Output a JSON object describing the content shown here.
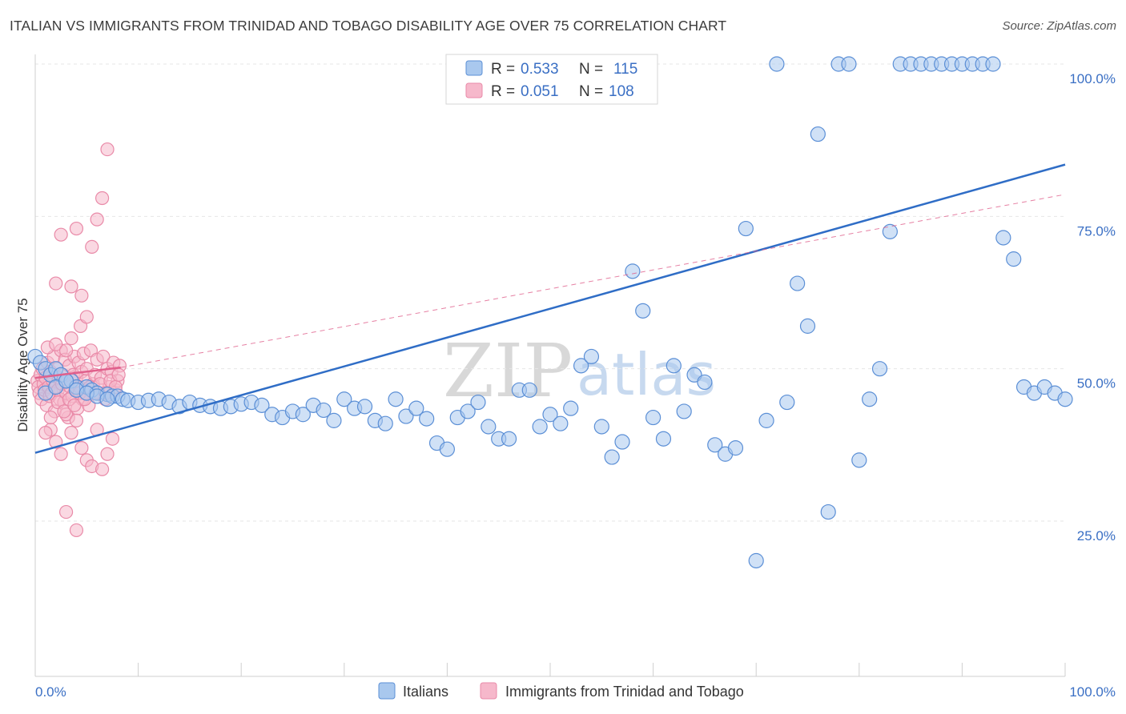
{
  "header": {
    "title": "ITALIAN VS IMMIGRANTS FROM TRINIDAD AND TOBAGO DISABILITY AGE OVER 75 CORRELATION CHART",
    "source": "Source: ZipAtlas.com"
  },
  "watermark": {
    "zip": "ZIP",
    "atlas": "atlas"
  },
  "legend": {
    "rows": [
      {
        "r_label": "R =",
        "r_value": "0.533",
        "n_label": "N =",
        "n_value": "115"
      },
      {
        "r_label": "R =",
        "r_value": "0.051",
        "n_label": "N =",
        "n_value": "108"
      }
    ]
  },
  "colors": {
    "blue_fill": "#a9c8ee",
    "blue_stroke": "#5b8fd6",
    "blue_line": "#2f6dc6",
    "pink_fill": "#f6b8cb",
    "pink_stroke": "#e98aa8",
    "pink_line": "#e0608c",
    "grid": "#e6e6e6",
    "axis_label": "#3a6fc4"
  },
  "chart_data": {
    "type": "scatter",
    "title": "ITALIAN VS IMMIGRANTS FROM TRINIDAD AND TOBAGO DISABILITY AGE OVER 75 CORRELATION CHART",
    "xlabel": "",
    "ylabel": "Disability Age Over 75",
    "xlim": [
      0,
      100
    ],
    "ylim": [
      0,
      102
    ],
    "x_tick_labels": [
      "0.0%",
      "100.0%"
    ],
    "y_tick_labels": [
      "100.0%",
      "75.0%",
      "50.0%",
      "25.0%"
    ],
    "y_ticks": [
      100,
      75,
      50,
      25
    ],
    "grid": true,
    "legend_position": "top-center",
    "series": [
      {
        "name": "Italians",
        "R": 0.533,
        "N": 115,
        "trend": {
          "x": [
            0,
            100
          ],
          "y": [
            36.2,
            83.5
          ],
          "style": "solid"
        },
        "points": [
          [
            0,
            52
          ],
          [
            0.5,
            51
          ],
          [
            1,
            50
          ],
          [
            1.5,
            49
          ],
          [
            2,
            50
          ],
          [
            2.5,
            49
          ],
          [
            3,
            48
          ],
          [
            3.5,
            48
          ],
          [
            4,
            47
          ],
          [
            5,
            47
          ],
          [
            5.5,
            46.5
          ],
          [
            6,
            46
          ],
          [
            7,
            45.8
          ],
          [
            7.5,
            45.5
          ],
          [
            8,
            45.5
          ],
          [
            8.5,
            45
          ],
          [
            9,
            44.8
          ],
          [
            10,
            44.5
          ],
          [
            11,
            44.8
          ],
          [
            12,
            45
          ],
          [
            13,
            44.5
          ],
          [
            14,
            43.8
          ],
          [
            15,
            44.5
          ],
          [
            16,
            44
          ],
          [
            17,
            43.8
          ],
          [
            18,
            43.5
          ],
          [
            19,
            43.8
          ],
          [
            20,
            44.2
          ],
          [
            21,
            44.5
          ],
          [
            22,
            44
          ],
          [
            23,
            42.5
          ],
          [
            24,
            42
          ],
          [
            25,
            43
          ],
          [
            26,
            42.5
          ],
          [
            27,
            44
          ],
          [
            28,
            43.2
          ],
          [
            29,
            41.5
          ],
          [
            30,
            45
          ],
          [
            31,
            43.5
          ],
          [
            32,
            43.8
          ],
          [
            33,
            41.5
          ],
          [
            34,
            41
          ],
          [
            35,
            45
          ],
          [
            36,
            42.2
          ],
          [
            37,
            43.5
          ],
          [
            38,
            41.8
          ],
          [
            39,
            37.8
          ],
          [
            40,
            36.8
          ],
          [
            41,
            42
          ],
          [
            42,
            43
          ],
          [
            43,
            44.5
          ],
          [
            44,
            40.5
          ],
          [
            45,
            38.5
          ],
          [
            46,
            38.5
          ],
          [
            47,
            46.5
          ],
          [
            48,
            46.5
          ],
          [
            49,
            40.5
          ],
          [
            50,
            42.5
          ],
          [
            51,
            41
          ],
          [
            52,
            43.5
          ],
          [
            53,
            50.5
          ],
          [
            54,
            52
          ],
          [
            55,
            40.5
          ],
          [
            56,
            35.5
          ],
          [
            57,
            38
          ],
          [
            58,
            66
          ],
          [
            59,
            59.5
          ],
          [
            60,
            42
          ],
          [
            61,
            38.5
          ],
          [
            62,
            50.5
          ],
          [
            63,
            43
          ],
          [
            64,
            49
          ],
          [
            65,
            47.8
          ],
          [
            66,
            37.5
          ],
          [
            67,
            36
          ],
          [
            68,
            37
          ],
          [
            69,
            73
          ],
          [
            70,
            18.5
          ],
          [
            71,
            41.5
          ],
          [
            72,
            100
          ],
          [
            73,
            44.5
          ],
          [
            74,
            64
          ],
          [
            75,
            57
          ],
          [
            76,
            88.5
          ],
          [
            77,
            26.5
          ],
          [
            78,
            100
          ],
          [
            79,
            100
          ],
          [
            80,
            35
          ],
          [
            81,
            45
          ],
          [
            82,
            50
          ],
          [
            83,
            72.5
          ],
          [
            84,
            100
          ],
          [
            85,
            100
          ],
          [
            86,
            100
          ],
          [
            87,
            100
          ],
          [
            88,
            100
          ],
          [
            89,
            100
          ],
          [
            90,
            100
          ],
          [
            91,
            100
          ],
          [
            92,
            100
          ],
          [
            93,
            100
          ],
          [
            94,
            71.5
          ],
          [
            95,
            68
          ],
          [
            96,
            47
          ],
          [
            97,
            46
          ],
          [
            98,
            47
          ],
          [
            99,
            46
          ],
          [
            100,
            45
          ],
          [
            1,
            46
          ],
          [
            2,
            47
          ],
          [
            3,
            48
          ],
          [
            4,
            46.5
          ],
          [
            5,
            46
          ],
          [
            6,
            45.5
          ],
          [
            7,
            45
          ]
        ]
      },
      {
        "name": "Immigrants from Trinidad and Tobago",
        "R": 0.051,
        "N": 108,
        "trend": {
          "x": [
            0,
            8.3
          ],
          "y": [
            48.5,
            50.2
          ],
          "style": "solid",
          "extended": {
            "x": [
              8.3,
              100
            ],
            "y": [
              50.2,
              78.6
            ],
            "style": "dashed"
          }
        },
        "points": [
          [
            0.2,
            48
          ],
          [
            0.3,
            47
          ],
          [
            0.4,
            46
          ],
          [
            0.5,
            49
          ],
          [
            0.6,
            45
          ],
          [
            0.7,
            50
          ],
          [
            0.8,
            47.5
          ],
          [
            0.9,
            46.5
          ],
          [
            1.0,
            48.5
          ],
          [
            1.1,
            44
          ],
          [
            1.2,
            51
          ],
          [
            1.3,
            47
          ],
          [
            1.4,
            45.5
          ],
          [
            1.5,
            49.5
          ],
          [
            1.6,
            46
          ],
          [
            1.7,
            48
          ],
          [
            1.8,
            52
          ],
          [
            1.9,
            43
          ],
          [
            2.0,
            47
          ],
          [
            2.1,
            50
          ],
          [
            2.2,
            46.5
          ],
          [
            2.3,
            48.5
          ],
          [
            2.4,
            45
          ],
          [
            2.5,
            53
          ],
          [
            2.6,
            47.5
          ],
          [
            2.7,
            49
          ],
          [
            2.8,
            44.5
          ],
          [
            2.9,
            51.5
          ],
          [
            3.0,
            46
          ],
          [
            3.1,
            48
          ],
          [
            3.2,
            42
          ],
          [
            3.3,
            50.5
          ],
          [
            3.4,
            47
          ],
          [
            3.5,
            55
          ],
          [
            3.6,
            45.5
          ],
          [
            3.7,
            49
          ],
          [
            3.8,
            52
          ],
          [
            3.9,
            46.5
          ],
          [
            4.0,
            48.5
          ],
          [
            4.1,
            43.5
          ],
          [
            4.2,
            51
          ],
          [
            4.3,
            47
          ],
          [
            4.4,
            57
          ],
          [
            4.5,
            49.5
          ],
          [
            4.6,
            45
          ],
          [
            4.7,
            52.5
          ],
          [
            4.8,
            46
          ],
          [
            4.9,
            48
          ],
          [
            5.0,
            50
          ],
          [
            5.2,
            44
          ],
          [
            5.4,
            53
          ],
          [
            5.6,
            47.5
          ],
          [
            5.8,
            49
          ],
          [
            6.0,
            51.5
          ],
          [
            6.2,
            46
          ],
          [
            6.4,
            48.5
          ],
          [
            6.6,
            52
          ],
          [
            6.8,
            45
          ],
          [
            7.0,
            50
          ],
          [
            7.2,
            47
          ],
          [
            7.4,
            49.5
          ],
          [
            7.6,
            51
          ],
          [
            7.8,
            46.5
          ],
          [
            8.0,
            48
          ],
          [
            8.2,
            50.5
          ],
          [
            1.5,
            40
          ],
          [
            2.0,
            38
          ],
          [
            2.5,
            36
          ],
          [
            3.0,
            42.5
          ],
          [
            3.5,
            39.5
          ],
          [
            4.0,
            41.5
          ],
          [
            4.5,
            37
          ],
          [
            5.0,
            35
          ],
          [
            5.5,
            34
          ],
          [
            6.0,
            40
          ],
          [
            6.5,
            33.5
          ],
          [
            7.0,
            36
          ],
          [
            7.5,
            38.5
          ],
          [
            2.5,
            72
          ],
          [
            3.5,
            63.5
          ],
          [
            4.5,
            62
          ],
          [
            5.0,
            58.5
          ],
          [
            5.5,
            70
          ],
          [
            6.0,
            74.5
          ],
          [
            6.5,
            78
          ],
          [
            7.0,
            86
          ],
          [
            3.0,
            26.5
          ],
          [
            4.0,
            23.5
          ],
          [
            2.0,
            64
          ],
          [
            4.0,
            73
          ],
          [
            1.0,
            39.5
          ],
          [
            1.5,
            42
          ],
          [
            2.2,
            44.5
          ],
          [
            2.8,
            43
          ],
          [
            3.3,
            45
          ],
          [
            3.8,
            44
          ],
          [
            4.3,
            46
          ],
          [
            4.8,
            45
          ],
          [
            5.3,
            47
          ],
          [
            5.8,
            46
          ],
          [
            6.3,
            47.5
          ],
          [
            6.8,
            46
          ],
          [
            7.3,
            48
          ],
          [
            7.8,
            47
          ],
          [
            8.1,
            49
          ],
          [
            1.2,
            53.5
          ],
          [
            2.0,
            54
          ],
          [
            3.0,
            53
          ]
        ]
      }
    ]
  },
  "bottom_legend": {
    "items": [
      {
        "label": "Italians"
      },
      {
        "label": "Immigrants from Trinidad and Tobago"
      }
    ]
  }
}
